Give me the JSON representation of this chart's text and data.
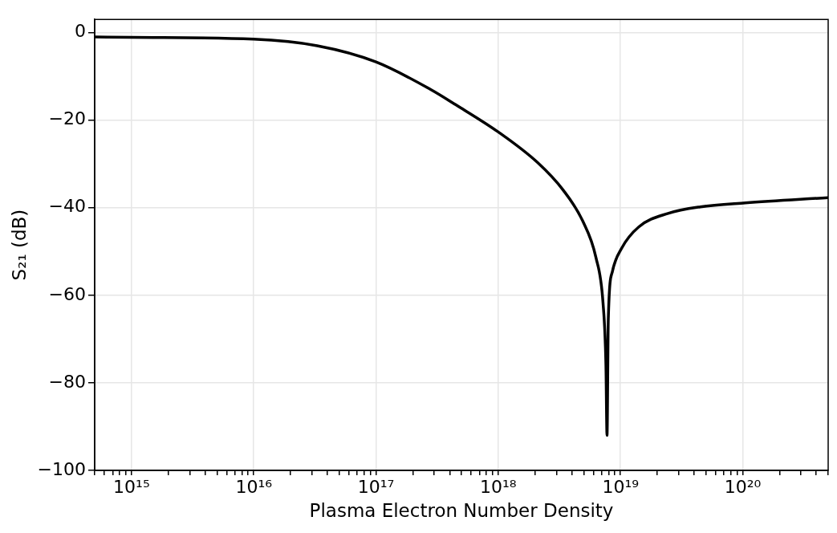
{
  "chart_data": {
    "type": "line",
    "xlabel": "Plasma Electron Number Density",
    "ylabel": "S₂₁ (dB)",
    "log": "x",
    "grid": true,
    "legend": false,
    "marker": "none",
    "line_style": "solid",
    "xlim": [
      500000000000000.0,
      5e+20
    ],
    "ylim": [
      -100,
      3
    ],
    "xticks": [
      {
        "value": 500000000000000.0,
        "label": null
      },
      {
        "value": 600000000000000.0,
        "label": null
      },
      {
        "value": 700000000000000.0,
        "label": null
      },
      {
        "value": 800000000000000.0,
        "label": null
      },
      {
        "value": 900000000000000.0,
        "label": null
      },
      {
        "value": 1000000000000000.0,
        "label": "10¹⁵"
      },
      {
        "value": 2000000000000000.0,
        "label": null
      },
      {
        "value": 3000000000000000.0,
        "label": null
      },
      {
        "value": 4000000000000000.0,
        "label": null
      },
      {
        "value": 5000000000000000.0,
        "label": null
      },
      {
        "value": 6000000000000000.0,
        "label": null
      },
      {
        "value": 7000000000000000.0,
        "label": null
      },
      {
        "value": 8000000000000000.0,
        "label": null
      },
      {
        "value": 9000000000000000.0,
        "label": null
      },
      {
        "value": 1e+16,
        "label": "10¹⁶"
      },
      {
        "value": 2e+16,
        "label": null
      },
      {
        "value": 3e+16,
        "label": null
      },
      {
        "value": 4e+16,
        "label": null
      },
      {
        "value": 5e+16,
        "label": null
      },
      {
        "value": 6e+16,
        "label": null
      },
      {
        "value": 7e+16,
        "label": null
      },
      {
        "value": 8e+16,
        "label": null
      },
      {
        "value": 9e+16,
        "label": null
      },
      {
        "value": 1e+17,
        "label": "10¹⁷"
      },
      {
        "value": 2e+17,
        "label": null
      },
      {
        "value": 3e+17,
        "label": null
      },
      {
        "value": 4e+17,
        "label": null
      },
      {
        "value": 5e+17,
        "label": null
      },
      {
        "value": 6e+17,
        "label": null
      },
      {
        "value": 7e+17,
        "label": null
      },
      {
        "value": 8e+17,
        "label": null
      },
      {
        "value": 9e+17,
        "label": null
      },
      {
        "value": 1e+18,
        "label": "10¹⁸"
      },
      {
        "value": 2e+18,
        "label": null
      },
      {
        "value": 3e+18,
        "label": null
      },
      {
        "value": 4e+18,
        "label": null
      },
      {
        "value": 5e+18,
        "label": null
      },
      {
        "value": 6e+18,
        "label": null
      },
      {
        "value": 7e+18,
        "label": null
      },
      {
        "value": 8e+18,
        "label": null
      },
      {
        "value": 9e+18,
        "label": null
      },
      {
        "value": 1e+19,
        "label": "10¹⁹"
      },
      {
        "value": 2e+19,
        "label": null
      },
      {
        "value": 3e+19,
        "label": null
      },
      {
        "value": 4e+19,
        "label": null
      },
      {
        "value": 5e+19,
        "label": null
      },
      {
        "value": 6e+19,
        "label": null
      },
      {
        "value": 7e+19,
        "label": null
      },
      {
        "value": 8e+19,
        "label": null
      },
      {
        "value": 9e+19,
        "label": null
      },
      {
        "value": 1e+20,
        "label": "10²⁰"
      },
      {
        "value": 2e+20,
        "label": null
      },
      {
        "value": 3e+20,
        "label": null
      },
      {
        "value": 4e+20,
        "label": null
      },
      {
        "value": 5e+20,
        "label": null
      }
    ],
    "yticks": [
      {
        "value": 0,
        "label": "0"
      },
      {
        "value": -20,
        "label": "−20"
      },
      {
        "value": -40,
        "label": "−40"
      },
      {
        "value": -60,
        "label": "−60"
      },
      {
        "value": -80,
        "label": "−80"
      },
      {
        "value": -100,
        "label": "−100"
      }
    ],
    "x": [
      500000000000000.0,
      1000000000000000.0,
      1e+16,
      3.3e+16,
      1e+17,
      2.8e+17,
      4.5e+17,
      1e+18,
      2.1e+18,
      3.4e+18,
      4.9e+18,
      6.3e+18,
      7.2e+18,
      7.6e+18,
      7.76e+18,
      7.95e+18,
      8.6e+18,
      1.02e+19,
      1.41e+19,
      2.45e+19,
      4.5e+19,
      1.05e+20,
      5e+20
    ],
    "series": [
      {
        "color": "#000000",
        "values": [
          -1.0,
          -1.1,
          -1.5,
          -3.0,
          -6.7,
          -13,
          -16.5,
          -22.7,
          -29.7,
          -36,
          -43,
          -51.4,
          -61.8,
          -75.8,
          -92,
          -65.4,
          -54.5,
          -49.3,
          -44.4,
          -41.3,
          -39.8,
          -38.9,
          -37.7
        ]
      }
    ]
  }
}
